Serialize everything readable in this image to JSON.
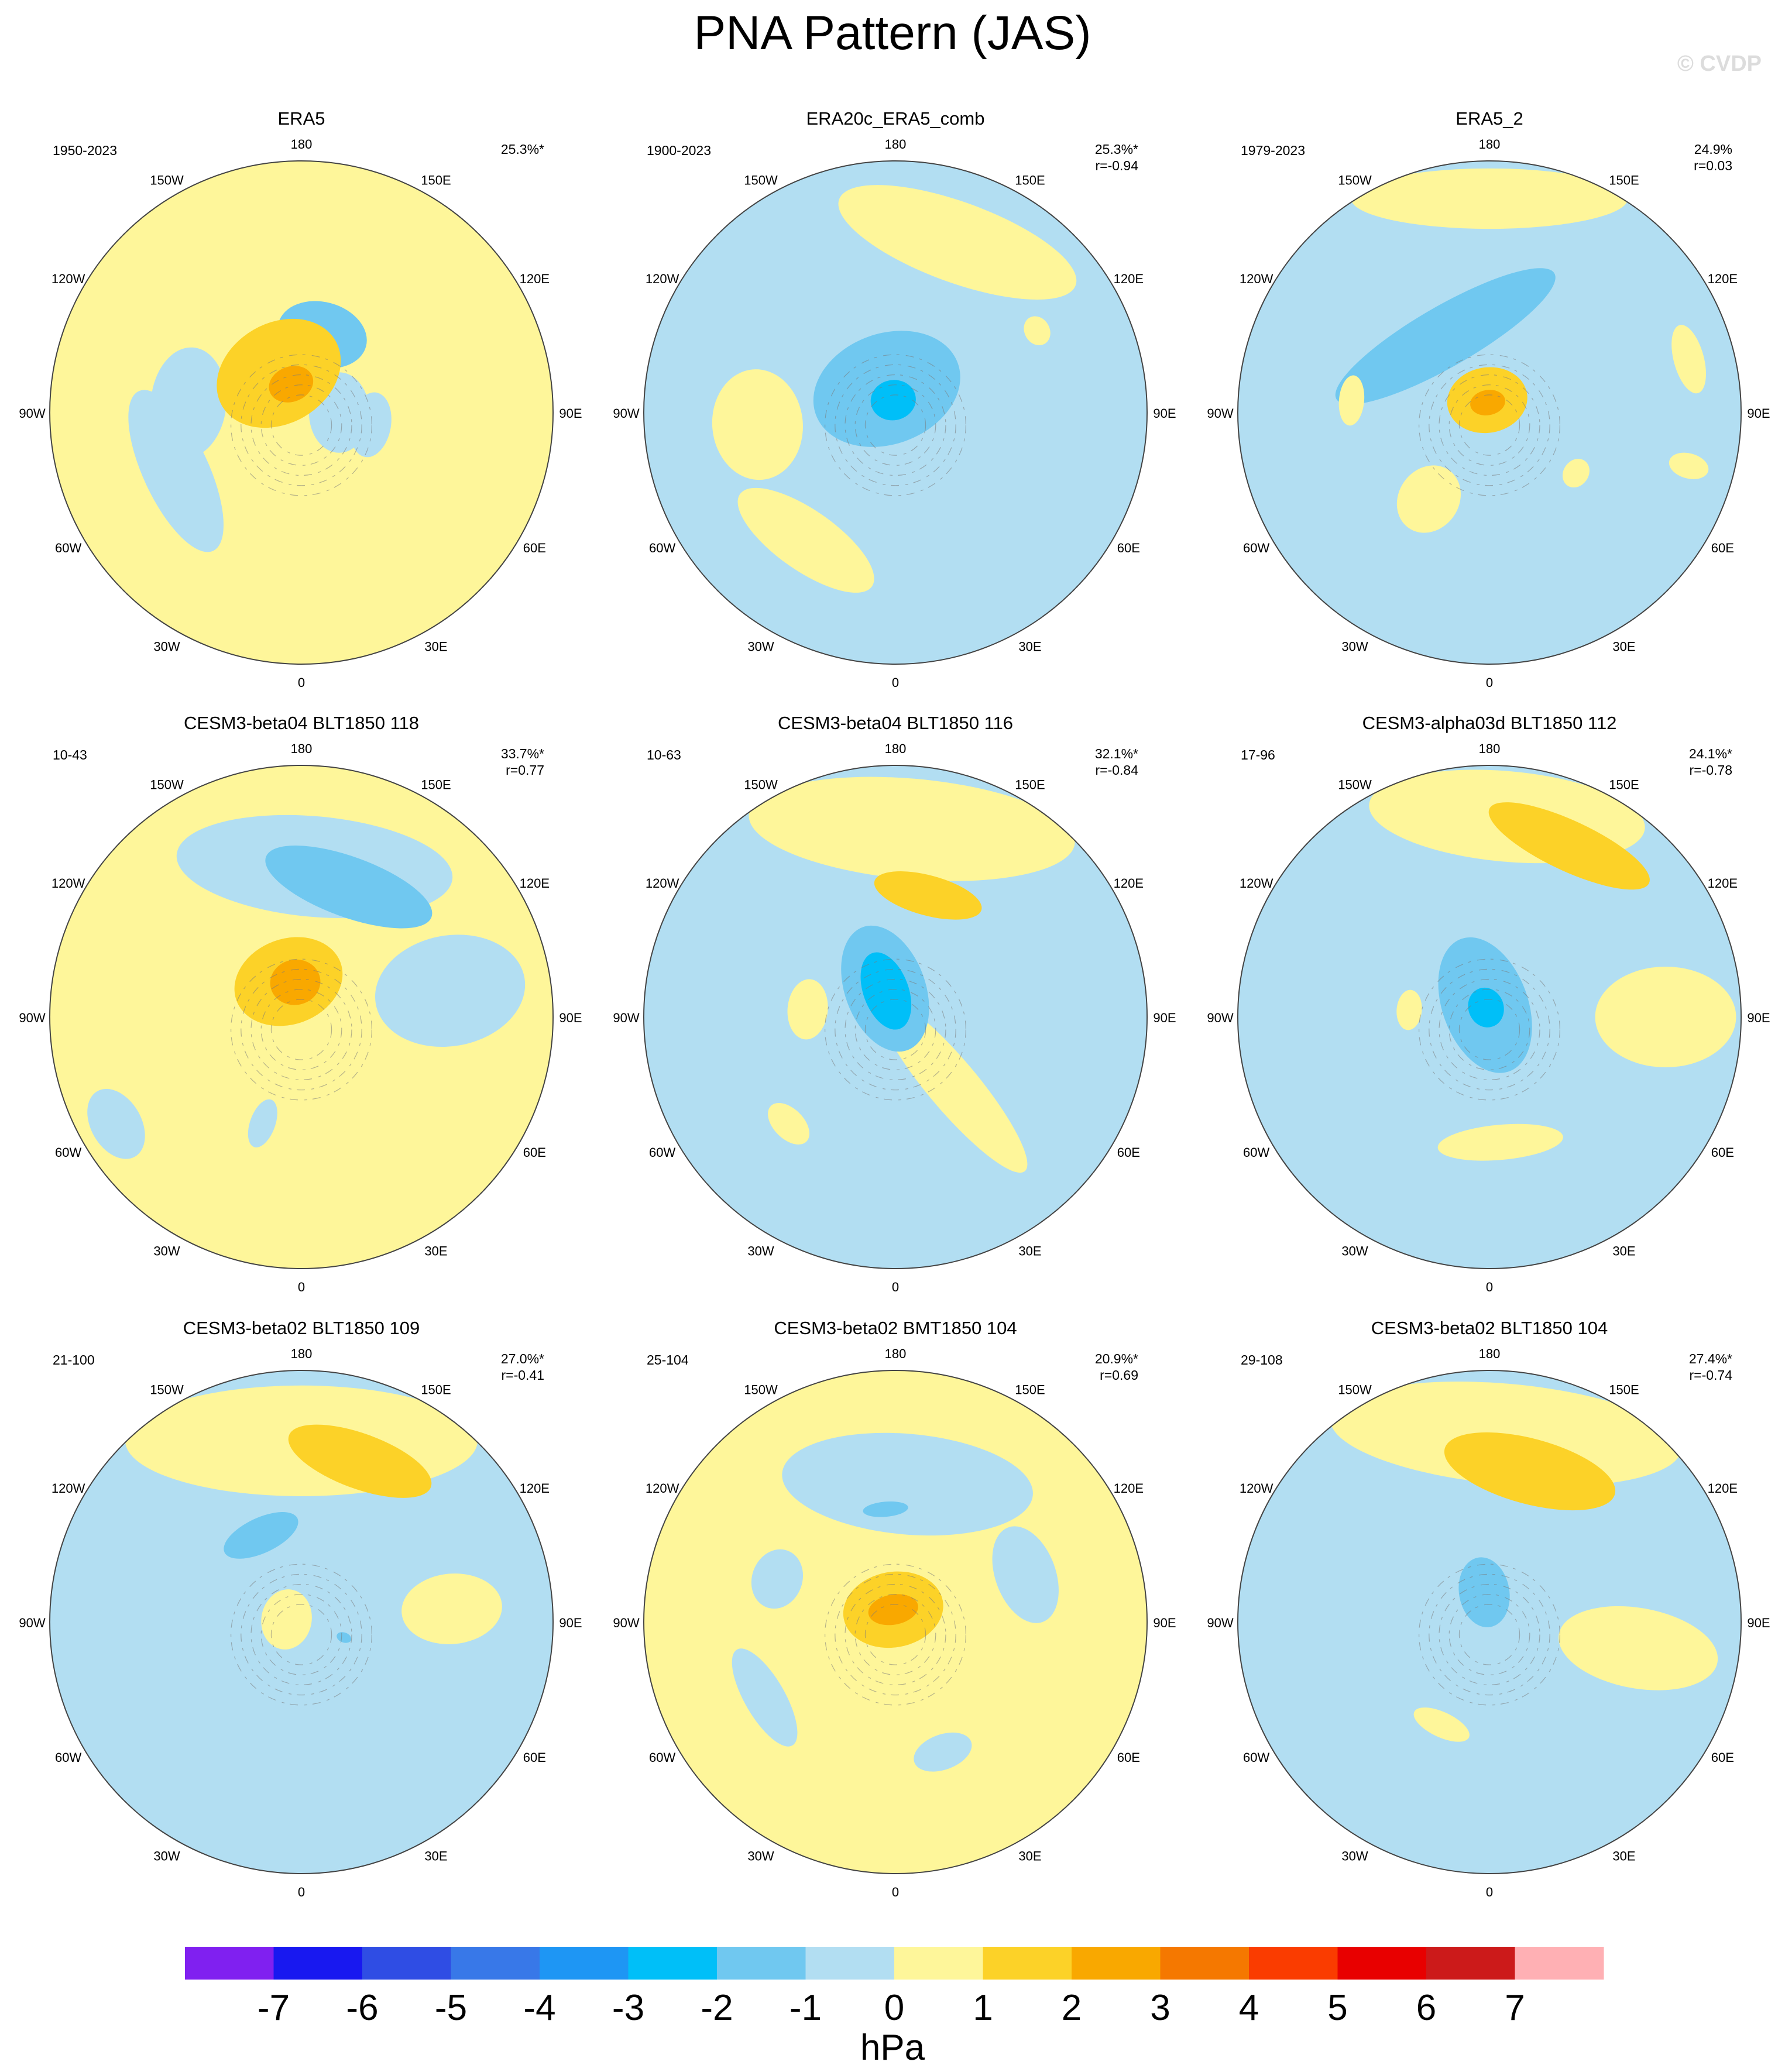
{
  "title": "PNA Pattern (JAS)",
  "watermark": "© CVDP",
  "longitude_labels": [
    "180",
    "150E",
    "120E",
    "90E",
    "60E",
    "30E",
    "0",
    "30W",
    "60W",
    "90W",
    "120W",
    "150W"
  ],
  "colorbar": {
    "unit": "hPa",
    "ticks": [
      "-7",
      "-6",
      "-5",
      "-4",
      "-3",
      "-2",
      "-1",
      "0",
      "1",
      "2",
      "3",
      "4",
      "5",
      "6",
      "7"
    ],
    "colors": [
      "#8020f0",
      "#1818f0",
      "#2f4de4",
      "#3878e8",
      "#1e96f4",
      "#00bff8",
      "#70c8f0",
      "#b2def2",
      "#fef69a",
      "#fcd228",
      "#f9a800",
      "#f57800",
      "#fa3c00",
      "#e80000",
      "#cc1a1a",
      "#ffb0b4"
    ]
  },
  "panels": [
    {
      "title": "ERA5",
      "period": "1950-2023",
      "pct": "25.3%*",
      "r": ""
    },
    {
      "title": "ERA20c_ERA5_comb",
      "period": "1900-2023",
      "pct": "25.3%*",
      "r": "r=-0.94"
    },
    {
      "title": "ERA5_2",
      "period": "1979-2023",
      "pct": "24.9%",
      "r": "r=0.03"
    },
    {
      "title": "CESM3-beta04 BLT1850 118",
      "period": "10-43",
      "pct": "33.7%*",
      "r": "r=0.77"
    },
    {
      "title": "CESM3-beta04 BLT1850 116",
      "period": "10-63",
      "pct": "32.1%*",
      "r": "r=-0.84"
    },
    {
      "title": "CESM3-alpha03d BLT1850 112",
      "period": "17-96",
      "pct": "24.1%*",
      "r": "r=-0.78"
    },
    {
      "title": "CESM3-beta02 BLT1850 109",
      "period": "21-100",
      "pct": "27.0%*",
      "r": "r=-0.41"
    },
    {
      "title": "CESM3-beta02 BMT1850 104",
      "period": "25-104",
      "pct": "20.9%*",
      "r": "r=0.69"
    },
    {
      "title": "CESM3-beta02 BLT1850 104",
      "period": "29-108",
      "pct": "27.4%*",
      "r": "r=-0.74"
    }
  ],
  "chart_data": {
    "type": "heatmap",
    "projection": "north polar stereographic",
    "field": "sea level pressure anomaly",
    "colorbar_range": [
      -7,
      7
    ],
    "panel_features": [
      {
        "background": "yellow",
        "blobs": [
          {
            "a": 180,
            "r": 0.12,
            "rx": 0.45,
            "ry": 0.18,
            "v": 0.5
          },
          {
            "a": 178,
            "r": 0.62,
            "rx": 0.38,
            "ry": 0.13,
            "v": 0.5
          },
          {
            "a": 165,
            "r": 0.32,
            "rx": 0.18,
            "ry": 0.13,
            "v": -1.5
          },
          {
            "a": 90,
            "r": 0.15,
            "rx": 0.16,
            "ry": 0.12,
            "v": -0.5
          },
          {
            "a": -95,
            "r": 0.45,
            "rx": 0.22,
            "ry": 0.15,
            "v": -0.5
          },
          {
            "a": -65,
            "r": 0.55,
            "rx": 0.35,
            "ry": 0.13,
            "v": -0.5
          },
          {
            "a": 80,
            "r": 0.28,
            "rx": 0.13,
            "ry": 0.08,
            "v": -0.5
          },
          {
            "a": -150,
            "r": 0.18,
            "rx": 0.26,
            "ry": 0.2,
            "v": 1.5
          },
          {
            "a": -160,
            "r": 0.12,
            "rx": 0.09,
            "ry": 0.07,
            "v": 2.5
          }
        ]
      },
      {
        "background": "blue",
        "blobs": [
          {
            "a": 160,
            "r": 0.72,
            "rx": 0.5,
            "ry": 0.16,
            "v": 0.5
          },
          {
            "a": -85,
            "r": 0.55,
            "rx": 0.22,
            "ry": 0.18,
            "v": 0.5
          },
          {
            "a": -35,
            "r": 0.62,
            "rx": 0.32,
            "ry": 0.12,
            "v": 0.5
          },
          {
            "a": -160,
            "r": 0.1,
            "rx": 0.3,
            "ry": 0.22,
            "v": -1.5
          },
          {
            "a": -170,
            "r": 0.05,
            "rx": 0.09,
            "ry": 0.08,
            "v": -2.5
          },
          {
            "a": 120,
            "r": 0.65,
            "rx": 0.06,
            "ry": 0.05,
            "v": 0.5
          }
        ]
      },
      {
        "background": "blue",
        "blobs": [
          {
            "a": 180,
            "r": 0.85,
            "rx": 0.55,
            "ry": 0.12,
            "v": 0.5
          },
          {
            "a": 105,
            "r": 0.82,
            "rx": 0.14,
            "ry": 0.06,
            "v": 0.5
          },
          {
            "a": -150,
            "r": 0.35,
            "rx": 0.5,
            "ry": 0.12,
            "v": -1.5
          },
          {
            "a": -95,
            "r": 0.55,
            "rx": 0.1,
            "ry": 0.05,
            "v": 0.5
          },
          {
            "a": -35,
            "r": 0.42,
            "rx": 0.12,
            "ry": 0.14,
            "v": 0.5
          },
          {
            "a": 55,
            "r": 0.42,
            "rx": 0.06,
            "ry": 0.05,
            "v": 0.5
          },
          {
            "a": 75,
            "r": 0.82,
            "rx": 0.05,
            "ry": 0.08,
            "v": 0.5
          },
          {
            "a": -170,
            "r": 0.05,
            "rx": 0.16,
            "ry": 0.13,
            "v": 1.5
          },
          {
            "a": -170,
            "r": 0.04,
            "rx": 0.07,
            "ry": 0.05,
            "v": 2.5
          }
        ]
      },
      {
        "background": "yellow",
        "blobs": [
          {
            "a": 175,
            "r": 0.6,
            "rx": 0.55,
            "ry": 0.2,
            "v": -0.5
          },
          {
            "a": 160,
            "r": 0.55,
            "rx": 0.35,
            "ry": 0.12,
            "v": -1.5
          },
          {
            "a": 100,
            "r": 0.6,
            "rx": 0.22,
            "ry": 0.3,
            "v": -0.5
          },
          {
            "a": -20,
            "r": 0.45,
            "rx": 0.05,
            "ry": 0.1,
            "v": -0.5
          },
          {
            "a": -60,
            "r": 0.85,
            "rx": 0.15,
            "ry": 0.1,
            "v": -0.5
          },
          {
            "a": -160,
            "r": 0.15,
            "rx": 0.22,
            "ry": 0.17,
            "v": 1.5
          },
          {
            "a": -170,
            "r": 0.14,
            "rx": 0.1,
            "ry": 0.09,
            "v": 2.5
          }
        ]
      },
      {
        "background": "blue",
        "blobs": [
          {
            "a": 175,
            "r": 0.75,
            "rx": 0.65,
            "ry": 0.2,
            "v": 0.5
          },
          {
            "a": 165,
            "r": 0.5,
            "rx": 0.22,
            "ry": 0.08,
            "v": 1.5
          },
          {
            "a": -95,
            "r": 0.35,
            "rx": 0.12,
            "ry": 0.08,
            "v": 0.5
          },
          {
            "a": -45,
            "r": 0.6,
            "rx": 0.1,
            "ry": 0.06,
            "v": 0.5
          },
          {
            "a": 40,
            "r": 0.35,
            "rx": 0.1,
            "ry": 0.45,
            "v": 0.5
          },
          {
            "a": -160,
            "r": 0.12,
            "rx": 0.16,
            "ry": 0.26,
            "v": -1.5
          },
          {
            "a": -160,
            "r": 0.11,
            "rx": 0.09,
            "ry": 0.16,
            "v": -2.5
          }
        ]
      },
      {
        "background": "blue",
        "blobs": [
          {
            "a": 175,
            "r": 0.8,
            "rx": 0.55,
            "ry": 0.18,
            "v": 0.5
          },
          {
            "a": 155,
            "r": 0.75,
            "rx": 0.35,
            "ry": 0.1,
            "v": 1.5
          },
          {
            "a": 90,
            "r": 0.7,
            "rx": 0.2,
            "ry": 0.28,
            "v": 0.5
          },
          {
            "a": -95,
            "r": 0.32,
            "rx": 0.08,
            "ry": 0.05,
            "v": 0.5
          },
          {
            "a": 5,
            "r": 0.5,
            "rx": 0.25,
            "ry": 0.07,
            "v": 0.5
          },
          {
            "a": -160,
            "r": 0.05,
            "rx": 0.17,
            "ry": 0.28,
            "v": -1.5
          },
          {
            "a": -160,
            "r": 0.04,
            "rx": 0.07,
            "ry": 0.08,
            "v": -2.5
          }
        ]
      },
      {
        "background": "blue",
        "blobs": [
          {
            "a": 180,
            "r": 0.72,
            "rx": 0.7,
            "ry": 0.22,
            "v": 0.5
          },
          {
            "a": 160,
            "r": 0.68,
            "rx": 0.3,
            "ry": 0.11,
            "v": 1.5
          },
          {
            "a": 95,
            "r": 0.6,
            "rx": 0.14,
            "ry": 0.2,
            "v": 0.5
          },
          {
            "a": -155,
            "r": 0.38,
            "rx": 0.16,
            "ry": 0.07,
            "v": -1.5
          },
          {
            "a": -100,
            "r": 0.06,
            "rx": 0.12,
            "ry": 0.1,
            "v": 0.5
          },
          {
            "a": 70,
            "r": 0.18,
            "rx": 0.02,
            "ry": 0.03,
            "v": -1.5
          }
        ]
      },
      {
        "background": "yellow",
        "blobs": [
          {
            "a": 175,
            "r": 0.55,
            "rx": 0.5,
            "ry": 0.2,
            "v": -0.5
          },
          {
            "a": -110,
            "r": 0.5,
            "rx": 0.12,
            "ry": 0.1,
            "v": -0.5
          },
          {
            "a": -60,
            "r": 0.6,
            "rx": 0.22,
            "ry": 0.08,
            "v": -0.5
          },
          {
            "a": 110,
            "r": 0.55,
            "rx": 0.2,
            "ry": 0.12,
            "v": -0.5
          },
          {
            "a": 20,
            "r": 0.55,
            "rx": 0.12,
            "ry": 0.07,
            "v": -0.5
          },
          {
            "a": -175,
            "r": 0.45,
            "rx": 0.09,
            "ry": 0.03,
            "v": -1.5
          },
          {
            "a": -170,
            "r": 0.05,
            "rx": 0.2,
            "ry": 0.15,
            "v": 1.5
          },
          {
            "a": -170,
            "r": 0.05,
            "rx": 0.1,
            "ry": 0.06,
            "v": 2.5
          }
        ]
      },
      {
        "background": "blue",
        "blobs": [
          {
            "a": 175,
            "r": 0.75,
            "rx": 0.7,
            "ry": 0.2,
            "v": 0.5
          },
          {
            "a": 165,
            "r": 0.62,
            "rx": 0.35,
            "ry": 0.13,
            "v": 1.5
          },
          {
            "a": 80,
            "r": 0.6,
            "rx": 0.16,
            "ry": 0.32,
            "v": 0.5
          },
          {
            "a": -25,
            "r": 0.45,
            "rx": 0.12,
            "ry": 0.05,
            "v": 0.5
          },
          {
            "a": -170,
            "r": 0.12,
            "rx": 0.1,
            "ry": 0.14,
            "v": -1.5
          }
        ]
      }
    ]
  }
}
